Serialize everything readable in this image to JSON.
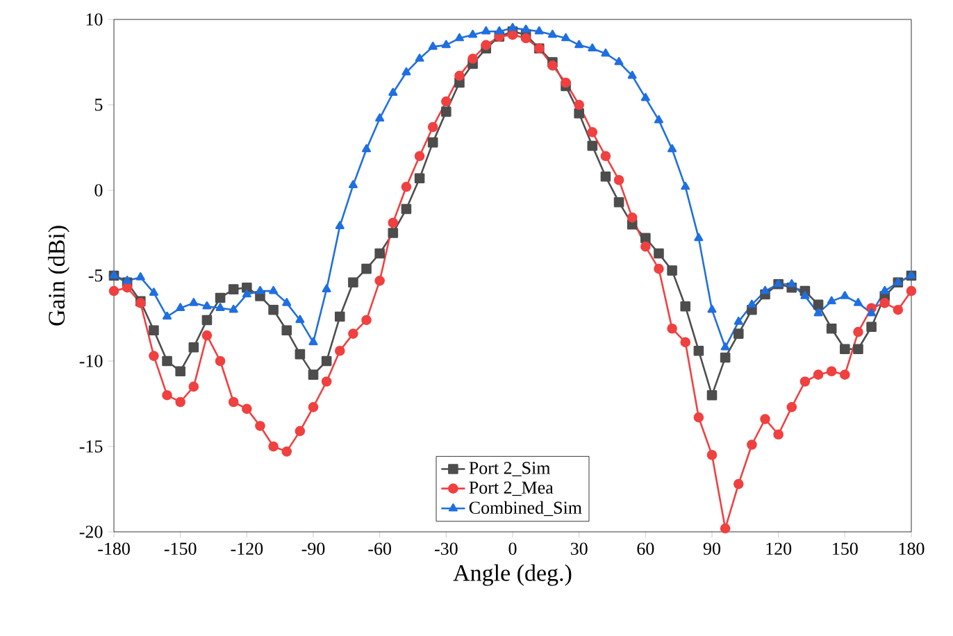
{
  "chart_data": {
    "type": "line",
    "xlabel": "Angle (deg.)",
    "ylabel": "Gain (dBi)",
    "x": [
      -180,
      -174,
      -168,
      -162,
      -156,
      -150,
      -144,
      -138,
      -132,
      -126,
      -120,
      -114,
      -108,
      -102,
      -96,
      -90,
      -84,
      -78,
      -72,
      -66,
      -60,
      -54,
      -48,
      -42,
      -36,
      -30,
      -24,
      -18,
      -12,
      -6,
      0,
      6,
      12,
      18,
      24,
      30,
      36,
      42,
      48,
      54,
      60,
      66,
      72,
      78,
      84,
      90,
      96,
      102,
      108,
      114,
      120,
      126,
      132,
      138,
      144,
      150,
      156,
      162,
      168,
      174,
      180
    ],
    "series": [
      {
        "name": "Port 2_Sim",
        "color": "#4d4d4d",
        "marker": "square",
        "values": [
          -5,
          -5.4,
          -6.5,
          -8.2,
          -10,
          -10.6,
          -9.2,
          -7.6,
          -6.3,
          -5.8,
          -5.7,
          -6.2,
          -7,
          -8.2,
          -9.6,
          -10.8,
          -10,
          -7.4,
          -5.4,
          -4.6,
          -3.7,
          -2.5,
          -1.1,
          0.7,
          2.8,
          4.6,
          6.3,
          7.4,
          8.3,
          9,
          9.3,
          9.1,
          8.3,
          7.5,
          6.1,
          4.5,
          2.6,
          0.8,
          -0.7,
          -2,
          -2.8,
          -3.7,
          -4.7,
          -6.8,
          -9.4,
          -12,
          -9.8,
          -8.4,
          -7,
          -6.1,
          -5.5,
          -5.7,
          -5.9,
          -6.7,
          -8.1,
          -9.3,
          -9.3,
          -8,
          -6.2,
          -5.4,
          -5
        ]
      },
      {
        "name": "Port 2_Mea",
        "color": "#f04040",
        "marker": "circle",
        "values": [
          -5.9,
          -5.7,
          -6.6,
          -9.7,
          -12,
          -12.4,
          -11.5,
          -8.5,
          -10,
          -12.4,
          -12.8,
          -13.8,
          -15,
          -15.3,
          -14.1,
          -12.7,
          -11.2,
          -9.4,
          -8.4,
          -7.6,
          -5.3,
          -1.9,
          0.2,
          2,
          3.7,
          5.2,
          6.7,
          7.7,
          8.5,
          9,
          9.1,
          8.9,
          8.3,
          7.3,
          6.3,
          5,
          3.4,
          2,
          0.6,
          -1.6,
          -3.3,
          -4.6,
          -8.1,
          -8.9,
          -13.3,
          -15.5,
          -19.8,
          -17.2,
          -14.9,
          -13.4,
          -14.3,
          -12.7,
          -11.2,
          -10.8,
          -10.6,
          -10.8,
          -8.3,
          -6.9,
          -6.6,
          -7,
          -5.9
        ]
      },
      {
        "name": "Combined_Sim",
        "color": "#1f6fe0",
        "marker": "triangle",
        "values": [
          -5,
          -5.3,
          -5.1,
          -6,
          -7.4,
          -6.9,
          -6.6,
          -6.8,
          -6.9,
          -7,
          -6.1,
          -5.9,
          -5.9,
          -6.6,
          -7.6,
          -8.9,
          -5.8,
          -2.1,
          0.3,
          2.4,
          4.2,
          5.7,
          6.9,
          7.7,
          8.4,
          8.5,
          8.9,
          9.1,
          9.3,
          9.3,
          9.5,
          9.4,
          9.3,
          9.1,
          8.9,
          8.5,
          8.3,
          8,
          7.5,
          6.7,
          5.4,
          4.1,
          2.4,
          0.2,
          -2.8,
          -7,
          -9.2,
          -7.7,
          -6.7,
          -5.9,
          -5.5,
          -5.5,
          -6.2,
          -7.2,
          -6.5,
          -6.2,
          -6.6,
          -7.2,
          -5.9,
          -5.4,
          -5
        ]
      }
    ],
    "xlim": [
      -180,
      180
    ],
    "ylim": [
      -20,
      10
    ],
    "xticks": [
      -180,
      -150,
      -120,
      -90,
      -60,
      -30,
      0,
      30,
      60,
      90,
      120,
      150,
      180
    ],
    "yticks": [
      -20,
      -15,
      -10,
      -5,
      0,
      5,
      10
    ],
    "grid": false,
    "legend": "bottom",
    "line_style": "solid"
  }
}
